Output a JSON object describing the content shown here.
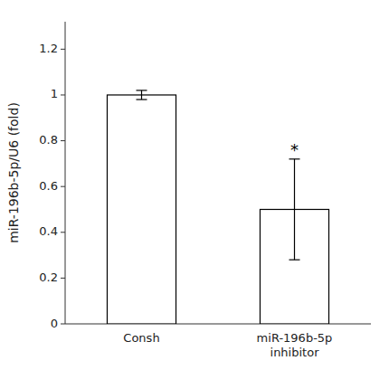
{
  "chart_data": {
    "type": "bar",
    "categories": [
      "Consh",
      "miR-196b-5p\ninhibitor"
    ],
    "values": [
      1.0,
      0.5
    ],
    "errors": [
      0.02,
      0.22
    ],
    "colors": [
      "#ffffff",
      "#ffffff"
    ],
    "ylabel": "miR-196b-5p/U6 (fold)",
    "ylim": [
      0,
      1.32
    ],
    "yticks": [
      0,
      0.2,
      0.4,
      0.6,
      0.8,
      1,
      1.2
    ],
    "significance": [
      null,
      "*"
    ]
  }
}
